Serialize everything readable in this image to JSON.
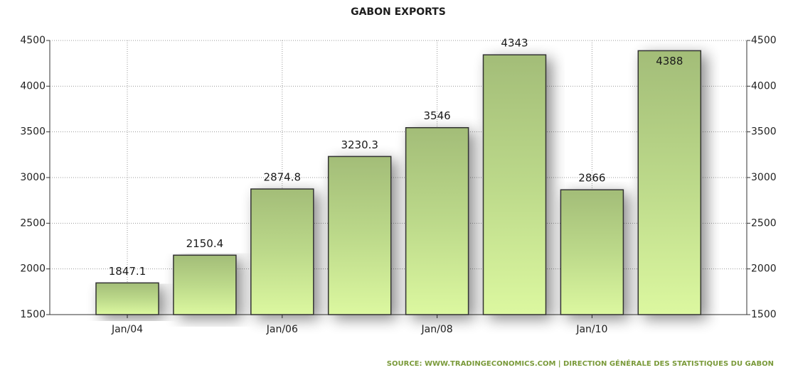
{
  "chart_data": {
    "type": "bar",
    "title": "GABON EXPORTS",
    "source": "SOURCE: WWW.TRADINGECONOMICS.COM | DIRECTION GÉNÉRALE DES STATISTIQUES DU GABON",
    "categories": [
      "Jan/04",
      null,
      "Jan/06",
      null,
      "Jan/08",
      null,
      "Jan/10",
      null
    ],
    "values": [
      1847.1,
      2150.4,
      2874.8,
      3230.3,
      3546,
      4343,
      2866,
      4388
    ],
    "color": "#bcd98a",
    "ylim": [
      1500,
      4500
    ],
    "yticks": [
      1500,
      2000,
      2500,
      3000,
      3500,
      4000,
      4500
    ],
    "y2lim": [
      1500,
      4500
    ],
    "y2ticks": [
      1500,
      2000,
      2500,
      3000,
      3500,
      4000,
      4500
    ],
    "grid": true
  }
}
